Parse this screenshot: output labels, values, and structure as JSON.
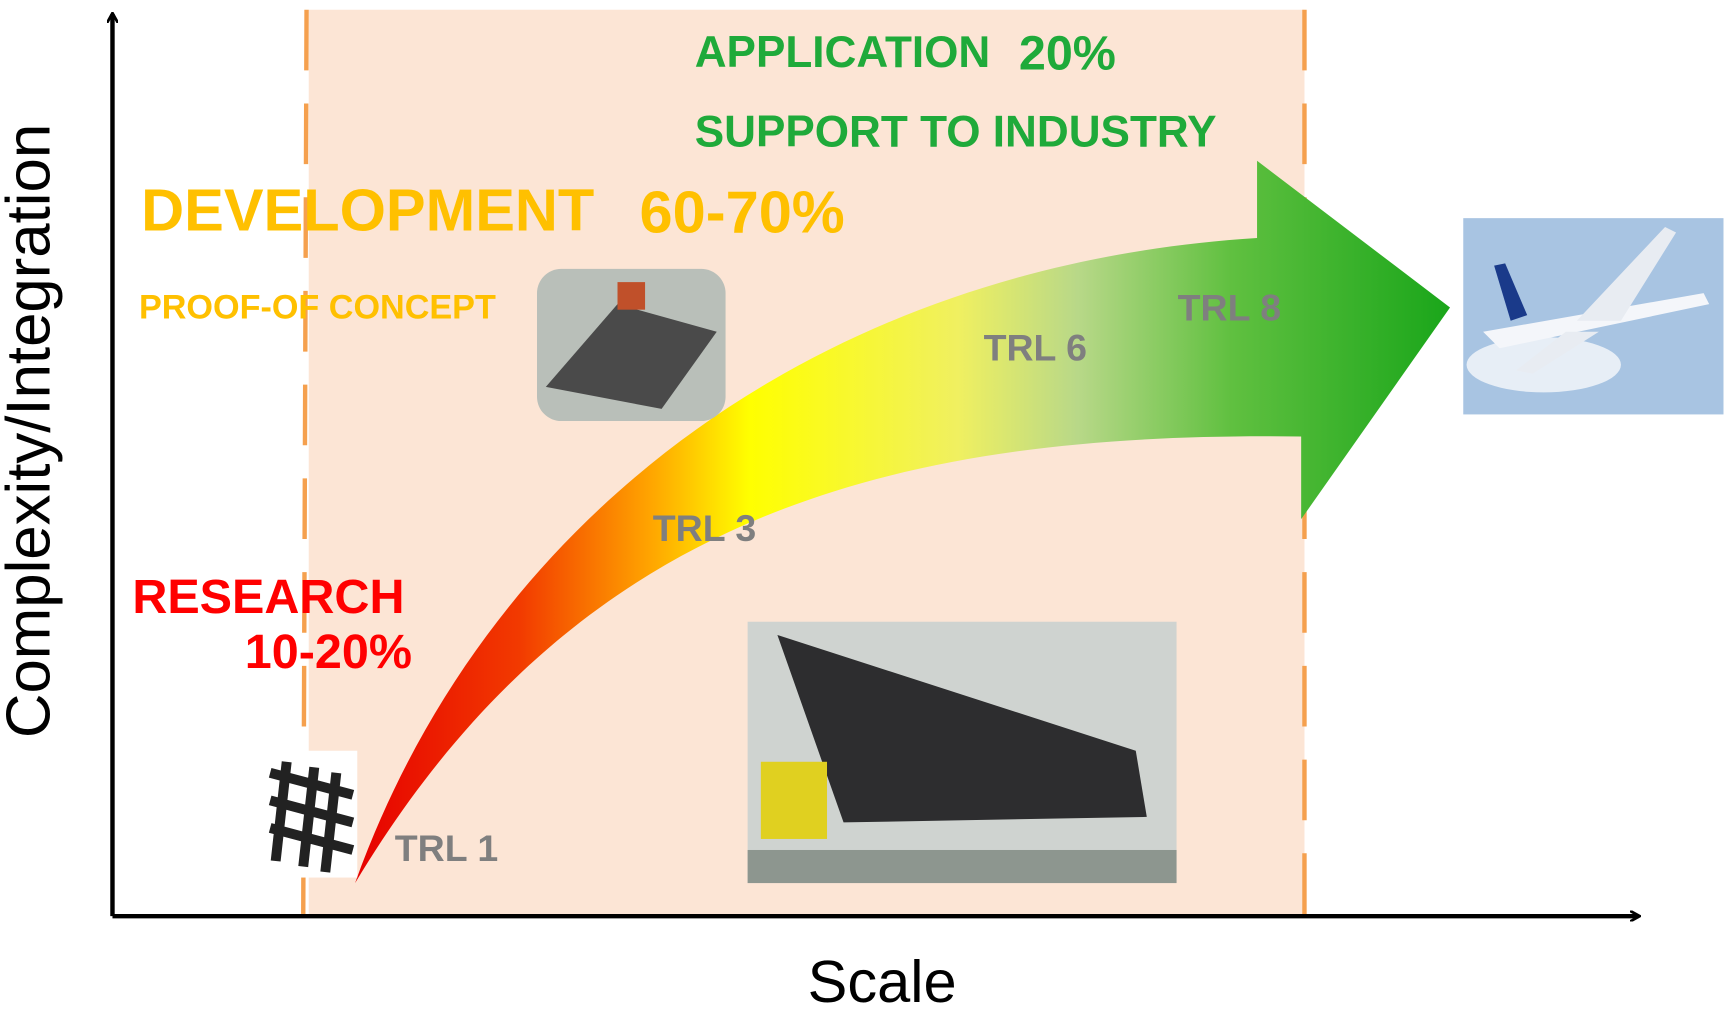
{
  "axes": {
    "y_label": "Complexity/Integration",
    "x_label": "Scale"
  },
  "research": {
    "title": "RESEARCH",
    "share": "10-20%"
  },
  "development": {
    "title": "DEVELOPMENT",
    "share": "60-70%",
    "subtitle": "PROOF-OF CONCEPT"
  },
  "application": {
    "title": "APPLICATION",
    "share": "20%",
    "subtitle": "SUPPORT TO INDUSTRY"
  },
  "trl_labels": [
    "TRL 1",
    "TRL 3",
    "TRL 6",
    "TRL 8"
  ]
}
